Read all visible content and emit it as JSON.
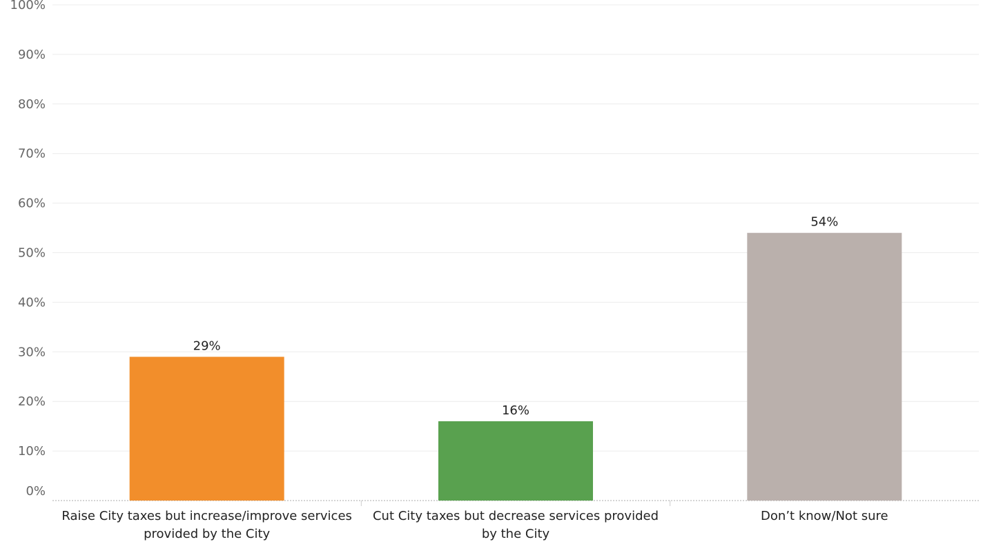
{
  "chart_data": {
    "type": "bar",
    "title": "",
    "xlabel": "",
    "ylabel": "",
    "ylim": [
      0,
      100
    ],
    "yticks": [
      "0%",
      "10%",
      "20%",
      "30%",
      "40%",
      "50%",
      "60%",
      "70%",
      "80%",
      "90%",
      "100%"
    ],
    "grid": true,
    "categories": [
      "Raise City taxes but increase/improve services provided by the City",
      "Cut City taxes but decrease services provided by the City",
      "Don’t know/Not sure"
    ],
    "values": [
      29,
      16,
      54
    ],
    "value_labels": [
      "29%",
      "16%",
      "54%"
    ],
    "colors": [
      "#f28e2b",
      "#59a14f",
      "#bab0ac"
    ]
  }
}
